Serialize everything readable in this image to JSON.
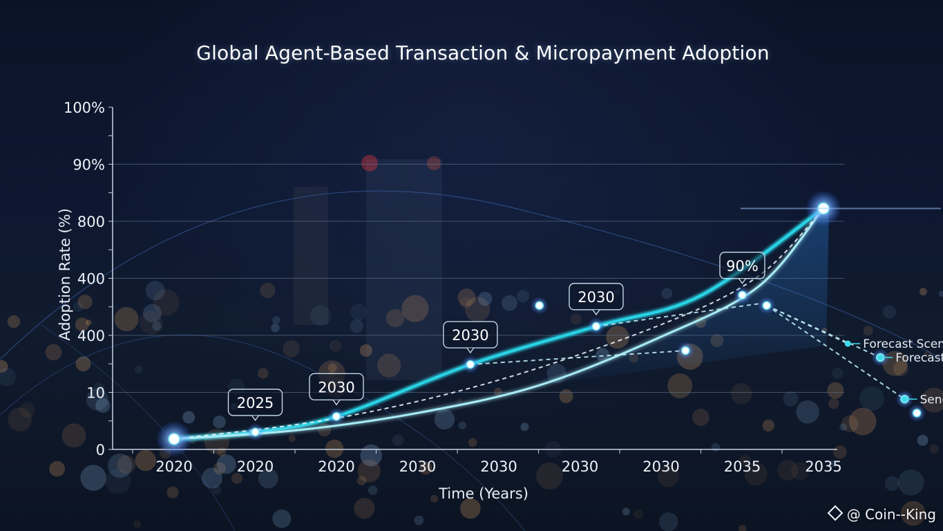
{
  "watermark": {
    "text": "@ Coin--King",
    "icon": "diamond-logo-icon"
  },
  "colors": {
    "background": "#0b1326",
    "primary_line": "#29d3e6",
    "secondary_line": "#a8ecf6",
    "dashed_line": "#e6f2f8",
    "grid": "#5a6b86",
    "glow": "#3f7dff"
  },
  "chart_data": {
    "type": "line",
    "title": "Global Agent-Based Transaction & Micropayment Adoption",
    "xlabel": "Time (Years)",
    "ylabel": "Adoption Rate (%)",
    "x_tick_labels": [
      "2020",
      "2020",
      "2020",
      "2030",
      "2030",
      "2030",
      "2030",
      "2035",
      "2035"
    ],
    "y_tick_labels": [
      "0",
      "10",
      "400",
      "400",
      "800",
      "90%",
      "100%"
    ],
    "grid": true,
    "series": [
      {
        "style": "solid-bright",
        "points": [
          [
            0,
            3
          ],
          [
            1,
            5
          ],
          [
            2,
            9.5
          ],
          [
            3.65,
            24.5
          ],
          [
            5.2,
            35.5
          ],
          [
            6.5,
            44.5
          ],
          [
            8.0,
            69.5
          ]
        ]
      },
      {
        "style": "solid-light",
        "points": [
          [
            0,
            3
          ],
          [
            1.5,
            5.5
          ],
          [
            3,
            10.5
          ],
          [
            4.5,
            18.5
          ],
          [
            6.0,
            32.5
          ],
          [
            7.2,
            47.0
          ],
          [
            8.0,
            69.5
          ]
        ]
      },
      {
        "style": "dashed",
        "points": [
          [
            0,
            3
          ],
          [
            2,
            9
          ],
          [
            4,
            20
          ],
          [
            6,
            36
          ],
          [
            7.2,
            50
          ],
          [
            8.0,
            69.5
          ]
        ]
      }
    ],
    "branches": [
      {
        "from": [
          5.2,
          35.5
        ],
        "to": [
          7.2,
          42.0
        ],
        "style": "dashed"
      },
      {
        "from": [
          3.65,
          24.5
        ],
        "to": [
          6.3,
          28.5
        ],
        "style": "dashed"
      },
      {
        "from": [
          7.3,
          41.5
        ],
        "to": [
          8.3,
          30.5
        ],
        "style": "dashed"
      },
      {
        "from": [
          7.3,
          41.5
        ],
        "to": [
          8.7,
          26.5
        ],
        "style": "dashed"
      },
      {
        "from": [
          7.3,
          41.5
        ],
        "to": [
          9.0,
          14.5
        ],
        "style": "dashed"
      }
    ],
    "markers": [
      [
        0,
        3
      ],
      [
        1,
        5
      ],
      [
        2,
        9.5
      ],
      [
        3.65,
        24.5
      ],
      [
        5.2,
        35.5
      ],
      [
        6.3,
        28.5
      ],
      [
        7.0,
        44.5
      ],
      [
        7.3,
        41.5
      ],
      [
        8.0,
        69.5
      ],
      [
        4.5,
        41.5
      ],
      [
        8.7,
        26.5
      ],
      [
        9.0,
        14.5
      ],
      [
        9.15,
        10.5
      ]
    ],
    "callouts": [
      {
        "label": "2025",
        "at": [
          1,
          5
        ]
      },
      {
        "label": "2030",
        "at": [
          2,
          9.5
        ]
      },
      {
        "label": "2030",
        "at": [
          3.65,
          24.5
        ]
      },
      {
        "label": "2030",
        "at": [
          5.2,
          35.5
        ]
      },
      {
        "label": "90%",
        "at": [
          7.0,
          44.5
        ]
      }
    ],
    "annotations": [
      {
        "text": "Forecast Scenarios",
        "at": [
          8.3,
          30.5
        ]
      },
      {
        "text": "Forecast Scenarios",
        "at": [
          8.7,
          26.5
        ]
      },
      {
        "text": "Sencatios",
        "at": [
          9.0,
          14.5
        ]
      }
    ]
  }
}
